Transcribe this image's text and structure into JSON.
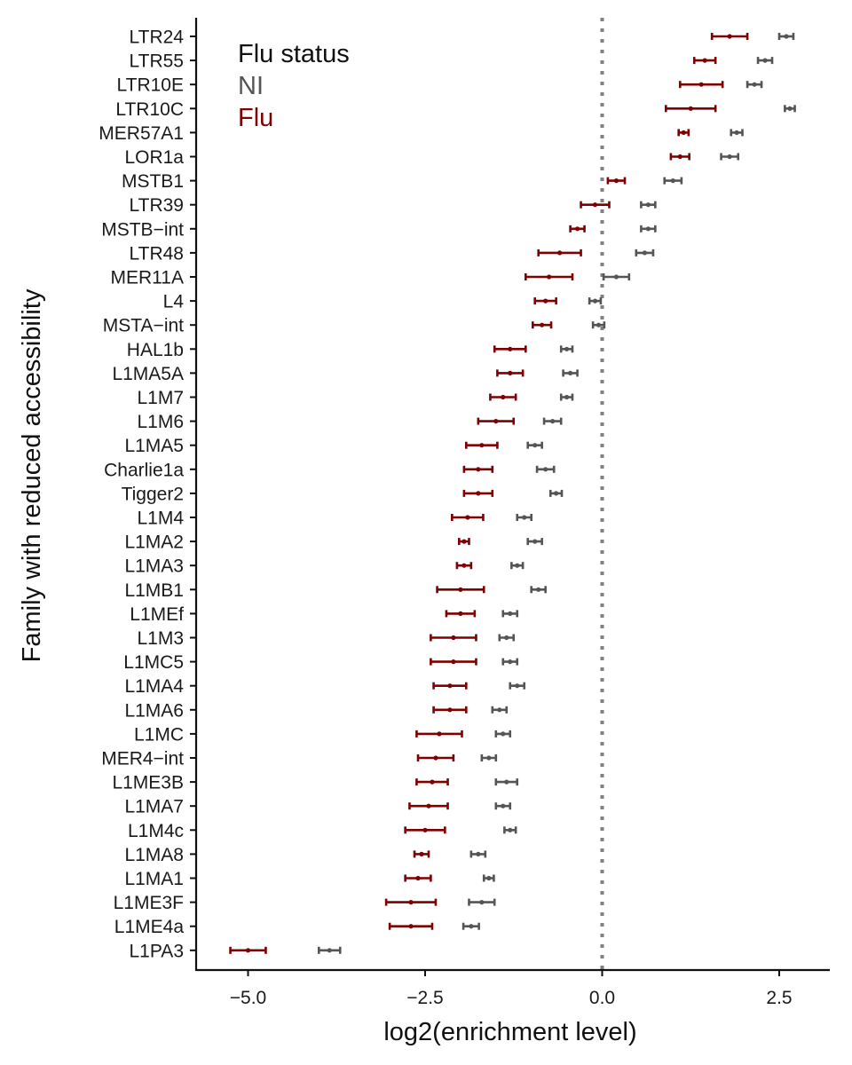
{
  "chart_data": {
    "type": "scatter",
    "title": "",
    "xlabel": "log2(enrichment level)",
    "ylabel": "Family with reduced accessibility",
    "xlim": [
      -5.6,
      3.15
    ],
    "x_ticks": [
      -5.0,
      -2.5,
      0.0,
      2.5
    ],
    "x_tick_labels": [
      "−5.0",
      "−2.5",
      "0.0",
      "2.5"
    ],
    "reference_line": {
      "x": 0,
      "style": "dotted"
    },
    "grid": false,
    "legend": {
      "title": "Flu status",
      "placement": "top-left"
    },
    "categories": [
      "LTR24",
      "LTR55",
      "LTR10E",
      "LTR10C",
      "MER57A1",
      "LOR1a",
      "MSTB1",
      "LTR39",
      "MSTB−int",
      "LTR48",
      "MER11A",
      "L4",
      "MSTA−int",
      "HAL1b",
      "L1MA5A",
      "L1M7",
      "L1M6",
      "L1MA5",
      "Charlie1a",
      "Tigger2",
      "L1M4",
      "L1MA2",
      "L1MA3",
      "L1MB1",
      "L1MEf",
      "L1M3",
      "L1MC5",
      "L1MA4",
      "L1MA6",
      "L1MC",
      "MER4−int",
      "L1ME3B",
      "L1MA7",
      "L1M4c",
      "L1MA8",
      "L1MA1",
      "L1ME3F",
      "L1ME4a",
      "L1PA3"
    ],
    "series": [
      {
        "name": "NI",
        "color": "#555555",
        "values": [
          2.6,
          2.3,
          2.15,
          2.65,
          1.9,
          1.8,
          1.0,
          0.65,
          0.65,
          0.6,
          0.2,
          -0.1,
          -0.05,
          -0.5,
          -0.45,
          -0.5,
          -0.7,
          -0.95,
          -0.8,
          -0.65,
          -1.1,
          -0.95,
          -1.2,
          -0.9,
          -1.3,
          -1.35,
          -1.3,
          -1.2,
          -1.45,
          -1.4,
          -1.6,
          -1.35,
          -1.4,
          -1.3,
          -1.75,
          -1.6,
          -1.7,
          -1.85,
          -3.85
        ],
        "lower": [
          2.5,
          2.2,
          2.05,
          2.58,
          1.82,
          1.68,
          0.88,
          0.55,
          0.55,
          0.48,
          0.02,
          -0.18,
          -0.13,
          -0.58,
          -0.55,
          -0.58,
          -0.82,
          -1.05,
          -0.92,
          -0.73,
          -1.2,
          -1.05,
          -1.28,
          -1.0,
          -1.4,
          -1.45,
          -1.4,
          -1.3,
          -1.55,
          -1.5,
          -1.7,
          -1.5,
          -1.5,
          -1.38,
          -1.85,
          -1.67,
          -1.88,
          -1.96,
          -4.0
        ]
      },
      {
        "name": "Flu",
        "color": "#7f0000",
        "values": [
          1.8,
          1.45,
          1.4,
          1.25,
          1.15,
          1.1,
          0.2,
          -0.1,
          -0.35,
          -0.6,
          -0.75,
          -0.8,
          -0.85,
          -1.3,
          -1.3,
          -1.4,
          -1.5,
          -1.7,
          -1.75,
          -1.75,
          -1.9,
          -1.95,
          -1.95,
          -2.0,
          -2.0,
          -2.1,
          -2.1,
          -2.15,
          -2.15,
          -2.3,
          -2.35,
          -2.4,
          -2.45,
          -2.5,
          -2.55,
          -2.6,
          -2.7,
          -2.7,
          -5.0
        ],
        "lower": [
          1.55,
          1.3,
          1.1,
          0.9,
          1.08,
          0.97,
          0.08,
          -0.3,
          -0.45,
          -0.9,
          -1.08,
          -0.95,
          -0.98,
          -1.52,
          -1.48,
          -1.58,
          -1.75,
          -1.92,
          -1.95,
          -1.95,
          -2.12,
          -2.02,
          -2.05,
          -2.33,
          -2.2,
          -2.42,
          -2.42,
          -2.38,
          -2.38,
          -2.62,
          -2.6,
          -2.62,
          -2.72,
          -2.78,
          -2.65,
          -2.78,
          -3.05,
          -3.0,
          -5.25
        ]
      }
    ]
  }
}
